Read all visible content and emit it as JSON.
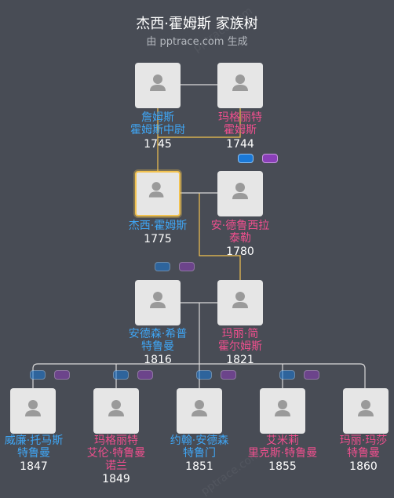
{
  "header": {
    "title": "杰西·霍姆斯 家族树",
    "subtitle": "由 pptrace.com 生成",
    "watermark": "pptrace.com"
  },
  "colors": {
    "background": "#484c55",
    "male": "#3fa6f5",
    "female": "#f04f8e",
    "focus_line": "#f2c24f",
    "line": "#d9d9d9"
  },
  "people": [
    {
      "id": "p1",
      "name": [
        "詹姆斯",
        "霍姆斯中尉"
      ],
      "year": "1745",
      "gender": "male"
    },
    {
      "id": "p2",
      "name": [
        "玛格丽特",
        "霍姆斯"
      ],
      "year": "1744",
      "gender": "female"
    },
    {
      "id": "p3",
      "name": [
        "杰西·霍姆斯"
      ],
      "year": "1775",
      "gender": "male",
      "focus": true
    },
    {
      "id": "p4",
      "name": [
        "安·德鲁西拉",
        "泰勒"
      ],
      "year": "1780",
      "gender": "female"
    },
    {
      "id": "p5",
      "name": [
        "安德森·希普",
        "特鲁曼"
      ],
      "year": "1816",
      "gender": "male"
    },
    {
      "id": "p6",
      "name": [
        "玛丽·简",
        "霍尔姆斯"
      ],
      "year": "1821",
      "gender": "female"
    },
    {
      "id": "p7",
      "name": [
        "威廉·托马斯",
        "特鲁曼"
      ],
      "year": "1847",
      "gender": "male"
    },
    {
      "id": "p8",
      "name": [
        "玛格丽特",
        "艾伦·特鲁曼",
        "诺兰"
      ],
      "year": "1849",
      "gender": "female"
    },
    {
      "id": "p9",
      "name": [
        "约翰·安德森",
        "特鲁门"
      ],
      "year": "1851",
      "gender": "male"
    },
    {
      "id": "p10",
      "name": [
        "艾米莉",
        "里克斯·特鲁曼"
      ],
      "year": "1855",
      "gender": "female"
    },
    {
      "id": "p11",
      "name": [
        "玛丽·玛莎",
        "特鲁曼"
      ],
      "year": "1860",
      "gender": "female"
    }
  ]
}
